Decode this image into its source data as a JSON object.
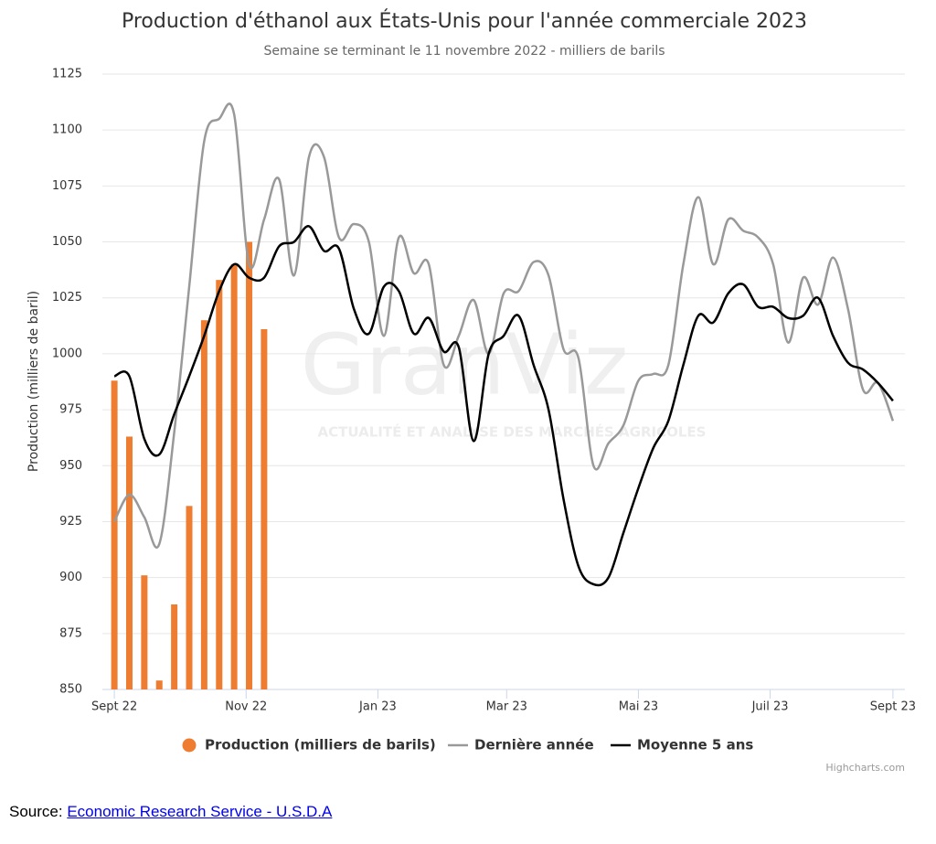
{
  "chart_data": {
    "type": "bar_line",
    "title": "Production d'éthanol aux États-Unis pour l'année commerciale 2023",
    "subtitle": "Semaine se terminant le 11 novembre 2022 - milliers de barils",
    "y_axis_label": "Production (milliers de baril)",
    "watermark": "GranViz",
    "watermark_subtitle": "ACTUALITÉ ET ANALYSE DES MARCHÉS AGRICOLES",
    "credits": "Highcharts.com",
    "source_label": "Source:",
    "source_link": "Economic Research Service - U.S.D.A",
    "x": [
      0,
      1,
      2,
      3,
      4,
      5,
      6,
      7,
      8,
      9,
      10,
      11,
      12,
      13,
      14,
      15,
      16,
      17,
      18,
      19,
      20,
      21,
      22,
      23,
      24,
      25,
      26,
      27,
      28,
      29,
      30,
      31,
      32,
      33,
      34,
      35,
      36,
      37,
      38,
      39,
      40,
      41,
      42,
      43,
      44,
      45,
      46,
      47,
      48,
      49,
      50,
      51,
      52
    ],
    "xlim": [
      -0.8,
      52.8
    ],
    "xticks": [
      {
        "value": 0,
        "label": "Sept 22"
      },
      {
        "value": 8.8,
        "label": "Nov 22"
      },
      {
        "value": 17.6,
        "label": "Jan 23"
      },
      {
        "value": 26.2,
        "label": "Mar 23"
      },
      {
        "value": 35,
        "label": "Mai 23"
      },
      {
        "value": 43.8,
        "label": "Juil 23"
      },
      {
        "value": 52,
        "label": "Sept 23"
      }
    ],
    "ylim": [
      850,
      1125
    ],
    "yticks": [
      850,
      875,
      900,
      925,
      950,
      975,
      1000,
      1025,
      1050,
      1075,
      1100,
      1125
    ],
    "grid": true,
    "legend": "bottom",
    "series": [
      {
        "name": "Production (milliers de barils)",
        "type": "bar",
        "color": "#ee7d31",
        "values": [
          988,
          963,
          901,
          854,
          888,
          932,
          1015,
          1033,
          1040,
          1050,
          1011,
          null,
          null,
          null,
          null,
          null,
          null,
          null,
          null,
          null,
          null,
          null,
          null,
          null,
          null,
          null,
          null,
          null,
          null,
          null,
          null,
          null,
          null,
          null,
          null,
          null,
          null,
          null,
          null,
          null,
          null,
          null,
          null,
          null,
          null,
          null,
          null,
          null,
          null,
          null,
          null,
          null,
          null
        ]
      },
      {
        "name": "Dernière année",
        "type": "line",
        "color": "#999999",
        "values": [
          925,
          937,
          927,
          915,
          965,
          1030,
          1095,
          1105,
          1107,
          1040,
          1060,
          1078,
          1035,
          1088,
          1088,
          1052,
          1058,
          1050,
          1008,
          1052,
          1036,
          1040,
          995,
          1008,
          1024,
          1000,
          1027,
          1028,
          1041,
          1035,
          1002,
          998,
          950,
          960,
          968,
          988,
          991,
          995,
          1040,
          1070,
          1040,
          1060,
          1055,
          1052,
          1040,
          1005,
          1034,
          1022,
          1043,
          1020,
          984,
          987,
          970
        ]
      },
      {
        "name": "Moyenne 5 ans",
        "type": "line",
        "color": "#000000",
        "values": [
          990,
          990,
          962,
          955,
          973,
          990,
          1008,
          1028,
          1040,
          1034,
          1034,
          1048,
          1050,
          1057,
          1046,
          1047,
          1020,
          1009,
          1030,
          1028,
          1009,
          1016,
          1001,
          1003,
          961,
          1000,
          1008,
          1017,
          995,
          975,
          935,
          905,
          897,
          900,
          920,
          940,
          958,
          970,
          995,
          1017,
          1014,
          1027,
          1031,
          1021,
          1021,
          1016,
          1017,
          1025,
          1008,
          996,
          993,
          987,
          979
        ]
      }
    ]
  }
}
